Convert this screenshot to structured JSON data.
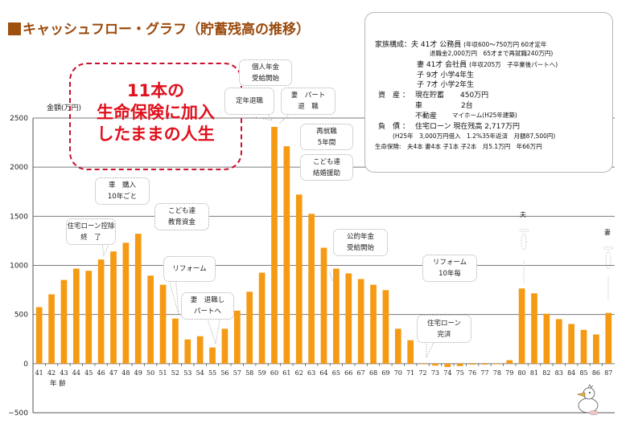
{
  "header": {
    "title": "キャッシュフロー・グラフ（貯蓄残高の推移）"
  },
  "highlight": {
    "lines": [
      "11本の",
      "生命保険に加入",
      "したままの人生"
    ],
    "color": "#e0101c"
  },
  "info": {
    "family_label": "家族構成：",
    "husband_main": "夫 41才 公務員",
    "husband_detail1": "(年収600～750万円 60才定年",
    "husband_detail2": "退職金2,000万円　65才まで再就職240万円)",
    "wife_main": "妻 41才 会社員",
    "wife_detail": "(年収205万　子卒業後パートへ)",
    "child1": "子 9才 小学4年生",
    "child2": "子 7才 小学2年生",
    "assets_label": "資　産 ：",
    "asset1_name": "現在貯蓄",
    "asset1_value": "450万円",
    "asset2_name": "車",
    "asset2_value": "2台",
    "asset3_name": "不動産",
    "asset3_value": "マイホーム(H25年建築)",
    "debt_label": "負　債 ：",
    "debt_main": "住宅ローン 現在残高 2,717万円",
    "debt_detail": "(H25年　3,000万円借入　1.2%35年返済　月額87,500円)",
    "insurance": "生命保険:　夫4本 妻4本 子1本 子2本　月5.1万円　年66万円"
  },
  "annotations": {
    "car": [
      "車　購入",
      "10年ごと"
    ],
    "edu": [
      "こども達",
      "教育資金"
    ],
    "loan_deduction": [
      "住宅ローン控除",
      "終　了"
    ],
    "reform": [
      "リフォーム"
    ],
    "wife_part": [
      "妻　退職し",
      "パートへ"
    ],
    "pension_private": [
      "個人年金",
      "受給開始"
    ],
    "retire": [
      "定年退職"
    ],
    "wife_retire": [
      "妻　パート",
      "退　職"
    ],
    "reemploy": [
      "再就職",
      "5年間"
    ],
    "wedding": [
      "こども達",
      "結婚援助"
    ],
    "pension_public": [
      "公的年金",
      "受給開始"
    ],
    "reform10": [
      "リフォーム",
      "10年毎"
    ],
    "loan_paid": [
      "住宅ローン",
      "完済"
    ],
    "husband_death": "夫",
    "wife_death": "妻"
  },
  "chart_data": {
    "type": "bar",
    "title": "キャッシュフロー・グラフ（貯蓄残高の推移）",
    "xlabel": "年 齢",
    "ylabel": "金額(万円)",
    "ylim": [
      -500,
      2500
    ],
    "yticks": [
      2500,
      2000,
      1500,
      1000,
      500,
      0,
      -500
    ],
    "grid": true,
    "bar_color": "#f59a12",
    "categories": [
      "41",
      "42",
      "43",
      "44",
      "45",
      "46",
      "47",
      "48",
      "49",
      "50",
      "51",
      "52",
      "53",
      "54",
      "55",
      "56",
      "57",
      "58",
      "59",
      "60",
      "61",
      "62",
      "63",
      "64",
      "65",
      "66",
      "67",
      "68",
      "69",
      "70",
      "71",
      "72",
      "73",
      "74",
      "75",
      "76",
      "77",
      "78",
      "79",
      "80",
      "81",
      "82",
      "83",
      "84",
      "85",
      "86",
      "87"
    ],
    "values": [
      575,
      705,
      852,
      967,
      945,
      1060,
      1142,
      1230,
      1322,
      896,
      803,
      459,
      246,
      279,
      164,
      355,
      539,
      732,
      926,
      2410,
      2213,
      1721,
      1525,
      1180,
      967,
      918,
      861,
      803,
      748,
      355,
      238,
      -5,
      -20,
      -35,
      -25,
      -10,
      -10,
      0,
      35,
      765,
      716,
      508,
      453,
      404,
      344,
      297,
      516
    ]
  }
}
